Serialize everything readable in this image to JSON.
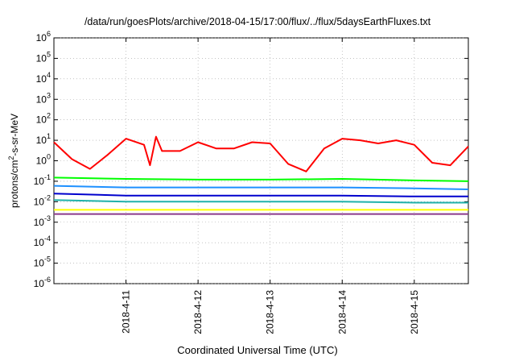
{
  "chart_data": {
    "type": "line",
    "title": "/data/run/goesPlots/archive/2018-04-15/17:00/flux/../flux/5daysEarthFluxes.txt",
    "xlabel": "Coordinated Universal Time (UTC)",
    "ylabel_prefix": "protons/cm",
    "ylabel_exponent": "2",
    "ylabel_suffix": "-s-sr-MeV",
    "y_scale": "log",
    "ylim": [
      1e-06,
      1000000.0
    ],
    "y_ticks": [
      {
        "base": "10",
        "exp": "-6",
        "value": 1e-06
      },
      {
        "base": "10",
        "exp": "-5",
        "value": 1e-05
      },
      {
        "base": "10",
        "exp": "-4",
        "value": 0.0001
      },
      {
        "base": "10",
        "exp": "-3",
        "value": 0.001
      },
      {
        "base": "10",
        "exp": "-2",
        "value": 0.01
      },
      {
        "base": "10",
        "exp": "-1",
        "value": 0.1
      },
      {
        "base": "10",
        "exp": "0",
        "value": 1
      },
      {
        "base": "10",
        "exp": "1",
        "value": 10
      },
      {
        "base": "10",
        "exp": "2",
        "value": 100
      },
      {
        "base": "10",
        "exp": "3",
        "value": 1000
      },
      {
        "base": "10",
        "exp": "4",
        "value": 10000
      },
      {
        "base": "10",
        "exp": "5",
        "value": 100000
      },
      {
        "base": "10",
        "exp": "6",
        "value": 1000000
      }
    ],
    "xlim": [
      "2018-04-10T00:00",
      "2018-04-15T18:00"
    ],
    "x_ticks": [
      "2018-4-11",
      "2018-4-12",
      "2018-4-13",
      "2018-4-14",
      "2018-4-15"
    ],
    "x_tick_dates": [
      "2018-04-11",
      "2018-04-12",
      "2018-04-13",
      "2018-04-14",
      "2018-04-15"
    ],
    "grid": true,
    "series": [
      {
        "color": "#ff0000",
        "x": [
          "2018-04-10T00:00",
          "2018-04-10T06:00",
          "2018-04-10T12:00",
          "2018-04-10T18:00",
          "2018-04-11T00:00",
          "2018-04-11T06:00",
          "2018-04-11T08:00",
          "2018-04-11T10:00",
          "2018-04-11T12:00",
          "2018-04-11T18:00",
          "2018-04-12T00:00",
          "2018-04-12T06:00",
          "2018-04-12T12:00",
          "2018-04-12T18:00",
          "2018-04-13T00:00",
          "2018-04-13T06:00",
          "2018-04-13T12:00",
          "2018-04-13T18:00",
          "2018-04-14T00:00",
          "2018-04-14T06:00",
          "2018-04-14T12:00",
          "2018-04-14T18:00",
          "2018-04-15T00:00",
          "2018-04-15T06:00",
          "2018-04-15T12:00",
          "2018-04-15T18:00"
        ],
        "values": [
          8,
          1.2,
          0.4,
          2,
          12,
          6,
          0.6,
          15,
          3,
          3,
          8,
          4,
          4,
          8,
          7,
          0.7,
          0.3,
          4,
          12,
          10,
          7,
          10,
          6,
          0.8,
          0.6,
          5
        ]
      },
      {
        "color": "#00ff00",
        "x": [
          "2018-04-10T00:00",
          "2018-04-11T00:00",
          "2018-04-12T00:00",
          "2018-04-13T00:00",
          "2018-04-14T00:00",
          "2018-04-15T00:00",
          "2018-04-15T18:00"
        ],
        "values": [
          0.15,
          0.13,
          0.12,
          0.12,
          0.13,
          0.11,
          0.1
        ]
      },
      {
        "color": "#1e90ff",
        "x": [
          "2018-04-10T00:00",
          "2018-04-11T00:00",
          "2018-04-12T00:00",
          "2018-04-13T00:00",
          "2018-04-14T00:00",
          "2018-04-15T00:00",
          "2018-04-15T18:00"
        ],
        "values": [
          0.06,
          0.05,
          0.05,
          0.05,
          0.05,
          0.045,
          0.04
        ]
      },
      {
        "color": "#0000cd",
        "x": [
          "2018-04-10T00:00",
          "2018-04-11T00:00",
          "2018-04-12T00:00",
          "2018-04-13T00:00",
          "2018-04-14T00:00",
          "2018-04-15T00:00",
          "2018-04-15T18:00"
        ],
        "values": [
          0.025,
          0.02,
          0.02,
          0.02,
          0.02,
          0.018,
          0.018
        ]
      },
      {
        "color": "#20b2aa",
        "x": [
          "2018-04-10T00:00",
          "2018-04-11T00:00",
          "2018-04-12T00:00",
          "2018-04-13T00:00",
          "2018-04-14T00:00",
          "2018-04-15T00:00",
          "2018-04-15T18:00"
        ],
        "values": [
          0.012,
          0.01,
          0.01,
          0.01,
          0.01,
          0.009,
          0.009
        ]
      },
      {
        "color": "#ffff00",
        "x": [
          "2018-04-10T00:00",
          "2018-04-11T00:00",
          "2018-04-12T00:00",
          "2018-04-13T00:00",
          "2018-04-14T00:00",
          "2018-04-15T00:00",
          "2018-04-15T18:00"
        ],
        "values": [
          0.004,
          0.004,
          0.004,
          0.004,
          0.004,
          0.004,
          0.004
        ]
      },
      {
        "color": "#8b3a8b",
        "x": [
          "2018-04-10T00:00",
          "2018-04-11T00:00",
          "2018-04-12T00:00",
          "2018-04-13T00:00",
          "2018-04-14T00:00",
          "2018-04-15T00:00",
          "2018-04-15T18:00"
        ],
        "values": [
          0.0025,
          0.0025,
          0.0025,
          0.0025,
          0.0025,
          0.0025,
          0.0025
        ]
      }
    ]
  }
}
